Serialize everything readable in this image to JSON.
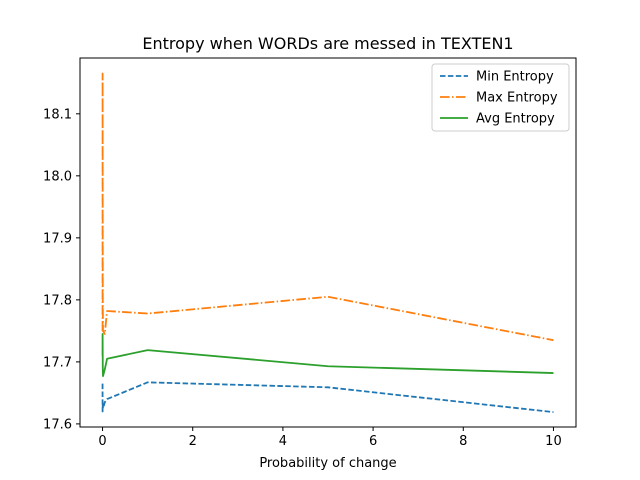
{
  "chart_data": {
    "type": "line",
    "title": "Entropy when WORDs are messed in TEXTEN1",
    "xlabel": "Probability of change",
    "ylabel": "",
    "xlim": [
      -0.5,
      10.5
    ],
    "ylim": [
      17.595,
      18.19
    ],
    "x_ticks": [
      0,
      2,
      4,
      6,
      8,
      10
    ],
    "y_ticks": [
      17.6,
      17.7,
      17.8,
      17.9,
      18.0,
      18.1
    ],
    "grid": false,
    "legend_placement": "top-right",
    "x": [
      0.0,
      0.001,
      0.005,
      0.01,
      0.05,
      0.1,
      1,
      5,
      10
    ],
    "series": [
      {
        "name": "Min Entropy",
        "color": "#1f77b4",
        "dash": "dashed",
        "values": [
          17.665,
          17.62,
          17.63,
          17.625,
          17.635,
          17.64,
          17.667,
          17.659,
          17.619
        ]
      },
      {
        "name": "Max Entropy",
        "color": "#ff7f0e",
        "dash": "dashdot",
        "values": [
          17.75,
          18.165,
          17.8,
          17.75,
          17.745,
          17.782,
          17.778,
          17.805,
          17.735
        ]
      },
      {
        "name": "Avg Entropy",
        "color": "#2ca02c",
        "dash": "solid",
        "values": [
          17.71,
          17.745,
          17.69,
          17.677,
          17.688,
          17.705,
          17.719,
          17.693,
          17.682
        ]
      }
    ]
  }
}
